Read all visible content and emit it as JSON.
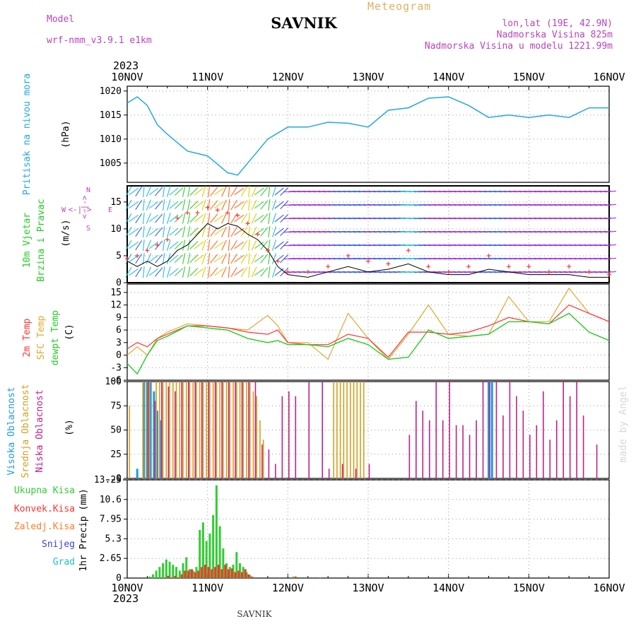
{
  "header": {
    "model_label": "Model",
    "model_name": "wrf-nmm_v3.9.1 e1km",
    "location": "SAVNIK",
    "product": "Meteogram",
    "coords": "lon,lat (19E, 42.9N)",
    "elevation": "Nadmorska Visina 825m",
    "model_elevation": "Nadmorska Visina u modelu 1221.99m",
    "year": "2023",
    "credit": "made by Angel",
    "footer": "SAVNIK"
  },
  "colors": {
    "pressure": "#22a8e0",
    "wind_label": "#22cc22",
    "wind_speed": "#000000",
    "gust": "#ff3333",
    "temp2m": "#ff3333",
    "sfc": "#e0a830",
    "dewpt": "#22cc22",
    "high": "#1e9be0",
    "mid": "#d4a020",
    "low": "#c0208a",
    "precip_total": "#33cc33",
    "precip_conv": "#ff3333",
    "precip_frozen": "#ff7f27",
    "snow": "#4040dd",
    "hail": "#22c0c0",
    "rose": "#bb44bb"
  },
  "x_axis": {
    "ticks": [
      "10NOV",
      "11NOV",
      "12NOV",
      "13NOV",
      "14NOV",
      "15NOV",
      "16NOV"
    ],
    "range_hours": [
      0,
      144
    ]
  },
  "panels": {
    "pressure": {
      "label1": "Pritisak na nivou mora",
      "unit": "(hPa)"
    },
    "wind": {
      "label1": "10m Vjetar",
      "label2": "Brzina i Pravac",
      "unit": "(m/s)",
      "rose_n": "N",
      "rose_s": "S",
      "rose_e": "E",
      "rose_w": "W",
      "rose_arrows": "<-|->"
    },
    "temp": {
      "label1": "2m Temp",
      "label2": "SFC Temp",
      "label3": "dewpt Temp",
      "unit": "(C)"
    },
    "cloud": {
      "label1": "Visoka Oblacnost",
      "label2": "Srednja Oblacnost",
      "label3": "Niska Oblacnost",
      "unit": "(%)"
    },
    "precip": {
      "label1": "Ukupna Kisa",
      "label2": "Konvek.Kisa",
      "label3": "Zaledj.Kisa",
      "label4": "Snijeg",
      "label5": "Grad",
      "unit": "1hr Precip (mm)"
    }
  },
  "chart_data": [
    {
      "type": "line",
      "ylabel": "(hPa)",
      "ylim": [
        1001,
        1021
      ],
      "yticks": [
        1005,
        1010,
        1015,
        1020
      ],
      "series": [
        {
          "x": [
            0,
            3,
            6,
            9,
            12,
            18,
            24,
            30,
            33,
            36,
            42,
            48,
            54,
            60,
            66,
            72,
            78,
            84,
            90,
            96,
            102,
            108,
            114,
            120,
            126,
            132,
            138,
            144
          ],
          "y": [
            1017.5,
            1018.8,
            1017,
            1013,
            1011,
            1007.5,
            1006.5,
            1003,
            1002.5,
            1005,
            1010,
            1012.5,
            1012.5,
            1013.5,
            1013.3,
            1012.5,
            1016,
            1016.5,
            1018.5,
            1018.8,
            1017,
            1014.5,
            1015,
            1014.5,
            1015,
            1014.5,
            1016.5,
            1016.5
          ]
        }
      ]
    },
    {
      "type": "line",
      "ylabel": "(m/s)",
      "ylim": [
        0,
        18
      ],
      "yticks": [
        0,
        5,
        10,
        15
      ],
      "series": [
        {
          "name": "wind speed",
          "x": [
            0,
            3,
            6,
            9,
            12,
            15,
            18,
            21,
            24,
            27,
            30,
            33,
            36,
            39,
            42,
            45,
            48,
            54,
            60,
            66,
            72,
            78,
            84,
            90,
            96,
            102,
            108,
            114,
            120,
            126,
            132,
            138,
            144
          ],
          "y": [
            4,
            3,
            4,
            3,
            4,
            6,
            7,
            9,
            11,
            10,
            11,
            10.5,
            9,
            8,
            6,
            3,
            1.5,
            1,
            2,
            3,
            2,
            2.5,
            3.5,
            2,
            1.5,
            1.5,
            2.5,
            2,
            1.5,
            1.5,
            1.5,
            1,
            1
          ]
        },
        {
          "name": "gust",
          "x": [
            0,
            3,
            6,
            9,
            12,
            15,
            18,
            21,
            24,
            27,
            30,
            33,
            36,
            39,
            42,
            45,
            48,
            54,
            60,
            66,
            72,
            78,
            84,
            90,
            96,
            102,
            108,
            114,
            120,
            126,
            132,
            138,
            144
          ],
          "y": [
            4.5,
            5,
            6,
            7,
            8,
            12,
            13,
            13,
            14,
            13.5,
            13,
            12.5,
            11,
            9,
            6,
            4,
            2,
            2,
            3,
            5,
            4,
            3.5,
            6,
            3,
            2,
            3,
            5,
            3,
            3,
            2,
            3,
            2,
            1.5
          ]
        }
      ]
    },
    {
      "type": "line",
      "ylabel": "(C)",
      "ylim": [
        -6,
        17
      ],
      "yticks": [
        -6,
        -3,
        0,
        3,
        6,
        9,
        12,
        15
      ],
      "series": [
        {
          "name": "2m Temp",
          "x": [
            0,
            3,
            6,
            9,
            12,
            18,
            24,
            30,
            36,
            42,
            45,
            48,
            54,
            60,
            66,
            72,
            78,
            84,
            90,
            96,
            102,
            108,
            114,
            120,
            126,
            132,
            138,
            144
          ],
          "y": [
            1.5,
            3,
            2,
            4,
            5,
            7,
            7,
            6.5,
            5.5,
            5,
            6,
            3,
            2.5,
            2.5,
            5,
            4,
            -0.5,
            5.5,
            5.5,
            5,
            5.5,
            7,
            9,
            8,
            7.5,
            12,
            10,
            8
          ]
        },
        {
          "name": "SFC Temp",
          "x": [
            0,
            3,
            6,
            9,
            12,
            18,
            24,
            30,
            36,
            42,
            45,
            48,
            54,
            60,
            66,
            72,
            78,
            84,
            90,
            96,
            102,
            108,
            114,
            120,
            126,
            132,
            138,
            144
          ],
          "y": [
            0,
            2,
            0,
            4,
            5.5,
            7.5,
            7,
            6.5,
            6,
            9.5,
            7,
            3,
            3,
            -1,
            10,
            4,
            -1,
            5,
            12,
            5,
            4.5,
            5,
            14,
            8,
            8,
            16,
            10,
            8
          ]
        },
        {
          "name": "dewpt Temp",
          "x": [
            0,
            3,
            6,
            9,
            12,
            18,
            24,
            30,
            36,
            42,
            45,
            48,
            54,
            60,
            66,
            72,
            78,
            84,
            90,
            96,
            102,
            108,
            114,
            120,
            126,
            132,
            138,
            144
          ],
          "y": [
            -2,
            -4.5,
            0,
            3.5,
            4.5,
            7,
            6.5,
            6,
            4,
            3,
            3.5,
            2.5,
            2.5,
            2,
            4,
            2.5,
            -1,
            -0.5,
            6,
            4,
            4.5,
            5,
            8,
            8,
            7.5,
            10,
            5.5,
            3.5
          ]
        }
      ]
    },
    {
      "type": "bar",
      "ylabel": "(%)",
      "ylim": [
        0,
        100
      ],
      "yticks": [
        0,
        25,
        50,
        75,
        100
      ],
      "series": [
        {
          "name": "Visoka Oblacnost",
          "x": [
            3,
            5,
            6,
            7,
            8,
            9,
            10,
            108,
            109
          ],
          "y": [
            10,
            100,
            100,
            100,
            90,
            70,
            60,
            100,
            100
          ]
        },
        {
          "name": "Srednja Oblacnost",
          "x": [
            1,
            5,
            6,
            7,
            9,
            10,
            11,
            12,
            13,
            14,
            15,
            16,
            17,
            18,
            19,
            20,
            21,
            22,
            23,
            24,
            25,
            26,
            27,
            28,
            29,
            30,
            31,
            32,
            33,
            34,
            35,
            36,
            37,
            38,
            39,
            40,
            41,
            62,
            63,
            64,
            65,
            66,
            67,
            68,
            69,
            70,
            71
          ],
          "y": [
            75,
            100,
            100,
            100,
            100,
            100,
            100,
            100,
            100,
            100,
            100,
            100,
            100,
            100,
            100,
            100,
            100,
            100,
            100,
            100,
            100,
            100,
            100,
            100,
            100,
            100,
            100,
            100,
            100,
            100,
            100,
            100,
            100,
            90,
            85,
            60,
            40,
            100,
            100,
            100,
            100,
            100,
            100,
            100,
            100,
            100,
            100
          ]
        },
        {
          "name": "Niska Oblacnost",
          "x": [
            6,
            8,
            10,
            12,
            14,
            16,
            18,
            20,
            22,
            24,
            26,
            28,
            30,
            32,
            34,
            36,
            38,
            40,
            42,
            44,
            46,
            48,
            50,
            54,
            58,
            60,
            64,
            68,
            72,
            84,
            86,
            88,
            90,
            92,
            94,
            96,
            98,
            100,
            102,
            104,
            106,
            108,
            110,
            112,
            114,
            116,
            118,
            120,
            122,
            124,
            126,
            128,
            130,
            132,
            134,
            136,
            140
          ],
          "y": [
            100,
            80,
            100,
            95,
            90,
            100,
            100,
            100,
            100,
            100,
            100,
            100,
            100,
            100,
            100,
            100,
            100,
            35,
            30,
            15,
            85,
            90,
            85,
            100,
            100,
            10,
            15,
            10,
            15,
            45,
            80,
            70,
            60,
            100,
            60,
            100,
            55,
            55,
            45,
            60,
            100,
            100,
            100,
            65,
            100,
            85,
            70,
            45,
            55,
            90,
            40,
            60,
            100,
            85,
            100,
            65,
            35
          ]
        }
      ]
    },
    {
      "type": "bar",
      "ylabel": "1hr Precip (mm)",
      "ylim": [
        0,
        13.25
      ],
      "yticks": [
        0,
        2.65,
        5.3,
        7.95,
        10.6,
        13.25
      ],
      "series": [
        {
          "name": "Ukupna Kisa",
          "x": [
            7,
            8,
            9,
            10,
            11,
            12,
            13,
            14,
            15,
            16,
            17,
            18,
            19,
            20,
            21,
            22,
            23,
            24,
            25,
            26,
            27,
            28,
            29,
            30,
            31,
            32,
            33,
            34,
            35,
            36,
            37,
            50,
            58
          ],
          "y": [
            0.2,
            0.5,
            1,
            1.5,
            2,
            2.5,
            2.2,
            1.8,
            1.5,
            1,
            2,
            2.8,
            1.2,
            1,
            1.5,
            6.5,
            7.5,
            5,
            6,
            8.5,
            12.5,
            7,
            4,
            2,
            1.5,
            1.8,
            3.5,
            2,
            1.5,
            0.8,
            0.4,
            0.2,
            0.1
          ]
        },
        {
          "name": "Konvek.Kisa",
          "x": [
            12,
            14,
            16,
            17,
            18,
            19,
            20,
            21,
            22,
            23,
            24,
            25,
            26,
            27,
            28,
            29,
            30,
            31,
            32,
            33,
            34,
            35,
            36,
            37,
            50
          ],
          "y": [
            0.3,
            0.3,
            0.5,
            1,
            1,
            1.2,
            0.8,
            1,
            1.5,
            1.8,
            1.5,
            1.2,
            1.5,
            1.8,
            1.2,
            1.8,
            1.2,
            1.3,
            0.8,
            1,
            0.8,
            1.2,
            0.5,
            0.2,
            0.2
          ]
        }
      ]
    }
  ]
}
